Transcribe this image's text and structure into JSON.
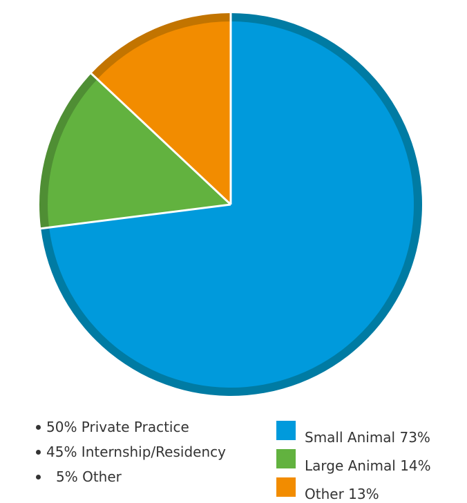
{
  "chart_data": {
    "type": "pie",
    "slices": [
      {
        "label": "Small Animal 73%",
        "value": 73,
        "color": "#009ADC",
        "edge_color": "#007BA3"
      },
      {
        "label": "Large Animal 14%",
        "value": 14,
        "color": "#62B23F",
        "edge_color": "#4F8E34"
      },
      {
        "label": "Other 13%",
        "value": 13,
        "color": "#F28C00",
        "edge_color": "#C27400"
      }
    ],
    "start_angle_deg": 0,
    "direction": "clockwise",
    "legend_position": "bottom-right",
    "title": ""
  },
  "notes": {
    "items": [
      {
        "text": "50% Private Practice"
      },
      {
        "text": "45% Internship/Residency"
      },
      {
        "text": "5% Other"
      }
    ]
  }
}
